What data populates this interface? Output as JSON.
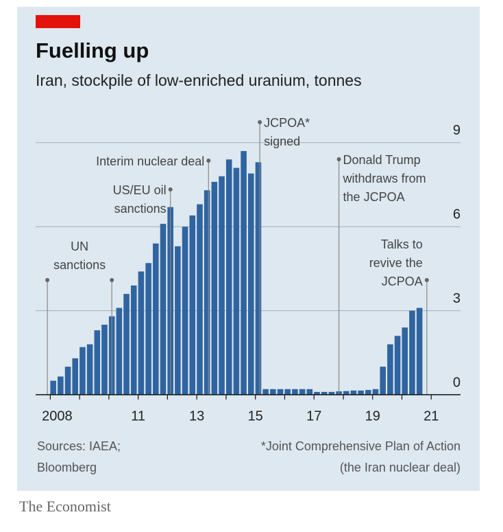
{
  "chart_data": {
    "type": "bar",
    "title": "Fuelling up",
    "subtitle": "Iran, stockpile of low-enriched uranium, tonnes",
    "color": "#2f64a0",
    "x": [
      2008.0,
      2008.25,
      2008.5,
      2008.75,
      2009.0,
      2009.25,
      2009.5,
      2009.75,
      2010.0,
      2010.25,
      2010.5,
      2010.75,
      2011.0,
      2011.25,
      2011.5,
      2011.75,
      2012.0,
      2012.25,
      2012.5,
      2012.75,
      2013.0,
      2013.25,
      2013.5,
      2013.75,
      2014.0,
      2014.25,
      2014.5,
      2014.75,
      2015.0,
      2015.25,
      2015.5,
      2015.75,
      2016.0,
      2016.25,
      2016.5,
      2016.75,
      2017.0,
      2017.25,
      2017.5,
      2017.75,
      2018.0,
      2018.25,
      2018.5,
      2018.75,
      2019.0,
      2019.25,
      2019.5,
      2019.75,
      2020.0,
      2020.25,
      2020.5
    ],
    "values": [
      0.5,
      0.65,
      1.0,
      1.3,
      1.7,
      1.8,
      2.3,
      2.5,
      2.8,
      3.1,
      3.6,
      3.9,
      4.4,
      4.7,
      5.4,
      6.1,
      6.7,
      5.3,
      6.0,
      6.4,
      6.8,
      7.3,
      7.6,
      7.8,
      8.4,
      8.1,
      8.7,
      7.9,
      8.3,
      0.2,
      0.2,
      0.2,
      0.2,
      0.2,
      0.2,
      0.2,
      0.1,
      0.1,
      0.1,
      0.12,
      0.13,
      0.15,
      0.15,
      0.17,
      0.2,
      1.0,
      1.8,
      2.1,
      2.4,
      3.0,
      3.1
    ],
    "xlim": [
      2007.5,
      2022
    ],
    "xticks": [
      {
        "value": 2008,
        "label": "2008"
      },
      {
        "value": 2011,
        "label": "11"
      },
      {
        "value": 2013,
        "label": "13"
      },
      {
        "value": 2015,
        "label": "15"
      },
      {
        "value": 2017,
        "label": "17"
      },
      {
        "value": 2019,
        "label": "19"
      },
      {
        "value": 2021,
        "label": "21"
      }
    ],
    "xminorticks": [
      2009,
      2010,
      2012,
      2014,
      2016,
      2018,
      2020
    ],
    "ylim": [
      0,
      9.5
    ],
    "yticks": [
      0,
      3,
      6,
      9
    ],
    "grid": true,
    "annotations": [
      {
        "x": 2007.9,
        "lines": []
      },
      {
        "x": 2010.1,
        "lines": [
          "UN",
          "sanctions"
        ]
      },
      {
        "x": 2012.1,
        "lines": [
          "US/EU oil",
          "sanctions"
        ]
      },
      {
        "x": 2013.4,
        "lines": [
          "Interim nuclear deal"
        ]
      },
      {
        "x": 2015.15,
        "lines": [
          "JCPOA*",
          "signed"
        ]
      },
      {
        "x": 2017.85,
        "lines": [
          "Donald Trump",
          "withdraws from",
          "the JCPOA"
        ]
      },
      {
        "x": 2020.85,
        "lines": [
          "Talks to",
          "revive the",
          "JCPOA"
        ]
      }
    ],
    "source": [
      "Sources: IAEA;",
      "Bloomberg"
    ],
    "footnote": [
      "*Joint Comprehensive Plan of Action",
      "(the Iran nuclear deal)"
    ],
    "brand": "The Economist"
  }
}
